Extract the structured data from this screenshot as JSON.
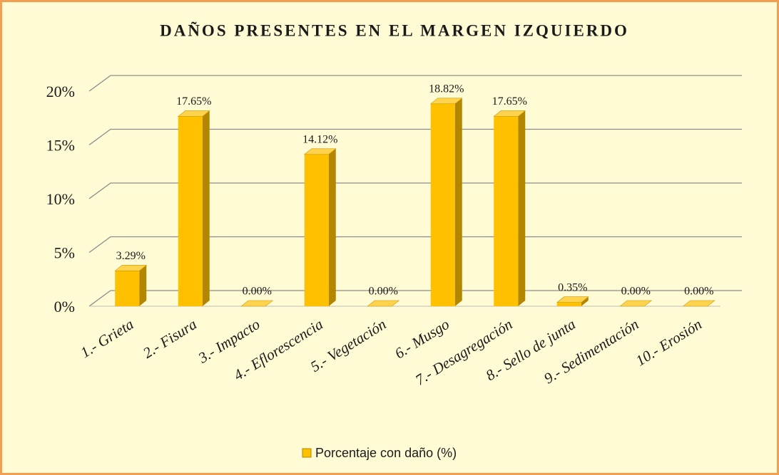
{
  "chart_data": {
    "type": "bar",
    "title": "DAÑOS PRESENTES EN EL MARGEN IZQUIERDO",
    "categories": [
      "1.- Grieta",
      "2.- Fisura",
      "3.- Impacto",
      "4.- Eflorescencia",
      "5.- Vegetación",
      "6.- Musgo",
      "7.- Desagregación",
      "8.- Sello de junta",
      "9.- Sedimentación",
      "10.- Erosión"
    ],
    "series": [
      {
        "name": "Porcentaje con daño (%)",
        "color": "#ffc000",
        "values": [
          3.29,
          17.65,
          0,
          14.12,
          0,
          18.82,
          17.65,
          0.35,
          0,
          0
        ],
        "value_labels": [
          "3.29%",
          "17.65%",
          "0.00%",
          "14.12%",
          "0.00%",
          "18.82%",
          "17.65%",
          "0.35%",
          "0.00%",
          "0.00%"
        ]
      }
    ],
    "ylim": [
      0,
      20
    ],
    "yticks": [
      {
        "value": 0,
        "label": "0%"
      },
      {
        "value": 5,
        "label": "5%"
      },
      {
        "value": 10,
        "label": "10%"
      },
      {
        "value": 15,
        "label": "15%"
      },
      {
        "value": 20,
        "label": "20%"
      }
    ],
    "grid": true,
    "legend": "bottom"
  }
}
